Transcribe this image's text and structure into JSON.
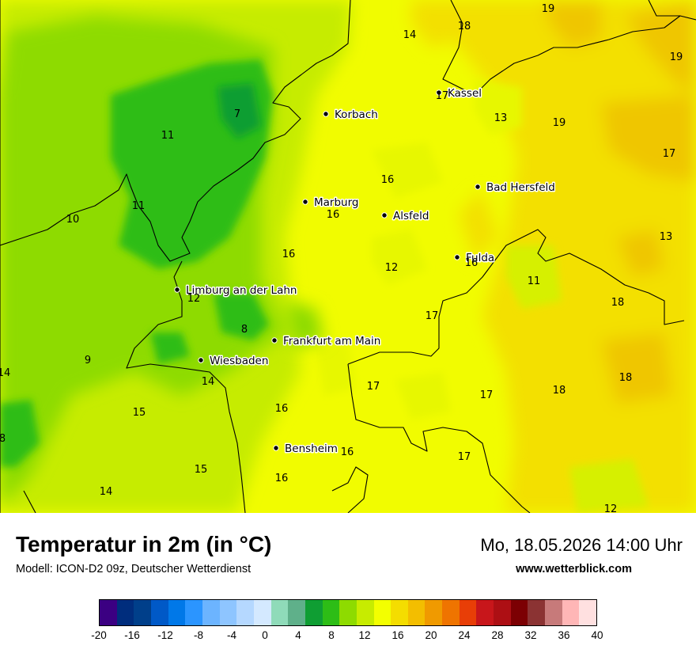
{
  "title": "Temperatur in 2m (in °C)",
  "model": "Modell: ICON-D2 09z, Deutscher Wetterdienst",
  "datetime": "Mo, 18.05.2026 14:00 Uhr",
  "website": "www.wetterblick.com",
  "legend": {
    "min": -20,
    "max": 40,
    "step": 2,
    "ticks": [
      "-20",
      "-16",
      "-12",
      "-8",
      "-4",
      "0",
      "4",
      "8",
      "12",
      "16",
      "20",
      "24",
      "28",
      "32",
      "36",
      "40"
    ],
    "colors": [
      "#3b0082",
      "#002d7d",
      "#003f8a",
      "#0059c7",
      "#0078e8",
      "#2b95ff",
      "#6cb4ff",
      "#8ec5ff",
      "#b5d8ff",
      "#d4e9ff",
      "#8fdbb9",
      "#5fb08a",
      "#0f9e33",
      "#2dbd16",
      "#8edb00",
      "#c7ec00",
      "#f3ff00",
      "#f4dd00",
      "#f3be00",
      "#f09a00",
      "#ef7400",
      "#e83e07",
      "#c8161b",
      "#ad0f14",
      "#7c0003",
      "#8b3333",
      "#c77a7a",
      "#ffb6b6",
      "#ffe0e0"
    ]
  },
  "cities": [
    {
      "name": "Kassel"
    },
    {
      "name": "Korbach"
    },
    {
      "name": "Bad Hersfeld"
    },
    {
      "name": "Marburg"
    },
    {
      "name": "Alsfeld"
    },
    {
      "name": "Fulda"
    },
    {
      "name": "Limburg an der Lahn"
    },
    {
      "name": "Frankfurt am Main"
    },
    {
      "name": "Wiesbaden"
    },
    {
      "name": "Bensheim"
    }
  ],
  "temperatures": [
    "19",
    "18",
    "14",
    "19",
    "17",
    "13",
    "19",
    "7",
    "11",
    "17",
    "16",
    "11",
    "10",
    "16",
    "13",
    "16",
    "12",
    "16",
    "11",
    "12",
    "18",
    "17",
    "8",
    "9",
    "14",
    "14",
    "18",
    "17",
    "17",
    "18",
    "15",
    "16",
    "8",
    "16",
    "17",
    "15",
    "16",
    "14",
    "12"
  ]
}
